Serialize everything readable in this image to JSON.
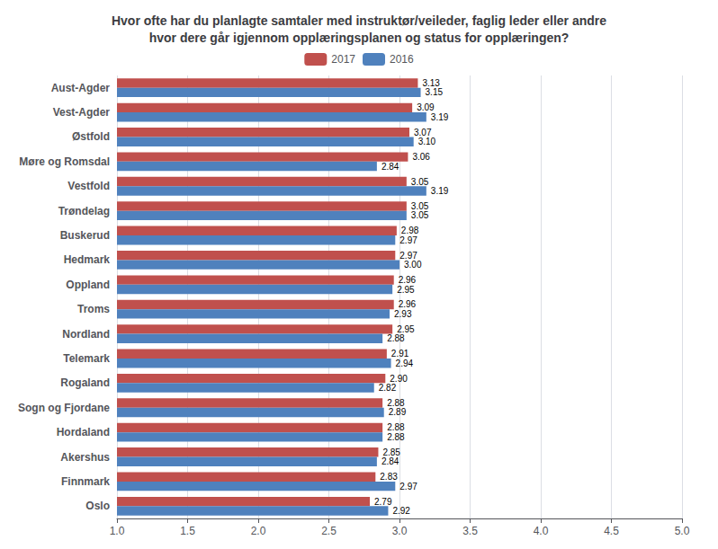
{
  "chart_data": {
    "type": "bar",
    "orientation": "horizontal",
    "title": "Hvor ofte har du planlagte samtaler med instruktør/veileder, faglig leder eller andre\nhvor dere går igjennom opplæringsplanen og status for opplæringen?",
    "categories": [
      "Aust-Agder",
      "Vest-Agder",
      "Østfold",
      "Møre og Romsdal",
      "Vestfold",
      "Trøndelag",
      "Buskerud",
      "Hedmark",
      "Oppland",
      "Troms",
      "Nordland",
      "Telemark",
      "Rogaland",
      "Sogn og Fjordane",
      "Hordaland",
      "Akershus",
      "Finnmark",
      "Oslo"
    ],
    "series": [
      {
        "name": "2017",
        "color": "#C0504D",
        "values": [
          3.13,
          3.09,
          3.07,
          3.06,
          3.05,
          3.05,
          2.98,
          2.97,
          2.96,
          2.96,
          2.95,
          2.91,
          2.9,
          2.88,
          2.88,
          2.85,
          2.83,
          2.79
        ],
        "value_labels": [
          "3.13",
          "3.09",
          "3.07",
          "3.06",
          "3.05",
          "3.05",
          "2.98",
          "2.97",
          "2.96",
          "2.96",
          "2.95",
          "2.91",
          "2.90",
          "2.88",
          "2.88",
          "2.85",
          "2.83",
          "2.79"
        ]
      },
      {
        "name": "2016",
        "color": "#4F81BD",
        "values": [
          3.15,
          3.19,
          3.1,
          2.84,
          3.19,
          3.05,
          2.97,
          3.0,
          2.95,
          2.93,
          2.88,
          2.94,
          2.82,
          2.89,
          2.88,
          2.84,
          2.97,
          2.92
        ],
        "value_labels": [
          "3.15",
          "3.19",
          "3.10",
          "2.84",
          "3.19",
          "3.05",
          "2.97",
          "3.00",
          "2.95",
          "2.93",
          "2.88",
          "2.94",
          "2.82",
          "2.89",
          "2.88",
          "2.84",
          "2.97",
          "2.92"
        ]
      }
    ],
    "xlim": [
      1.0,
      5.0
    ],
    "xticks": [
      {
        "value": 1,
        "label": "1.0"
      },
      1.5,
      {
        "value": 2,
        "label": "2.0"
      },
      2.5,
      {
        "value": 3,
        "label": "3.0"
      },
      3.5,
      {
        "value": 4,
        "label": "4.0"
      },
      4.5,
      {
        "value": 5,
        "label": "5.0"
      }
    ],
    "grid": true,
    "legend": "top",
    "data_labels": true
  }
}
